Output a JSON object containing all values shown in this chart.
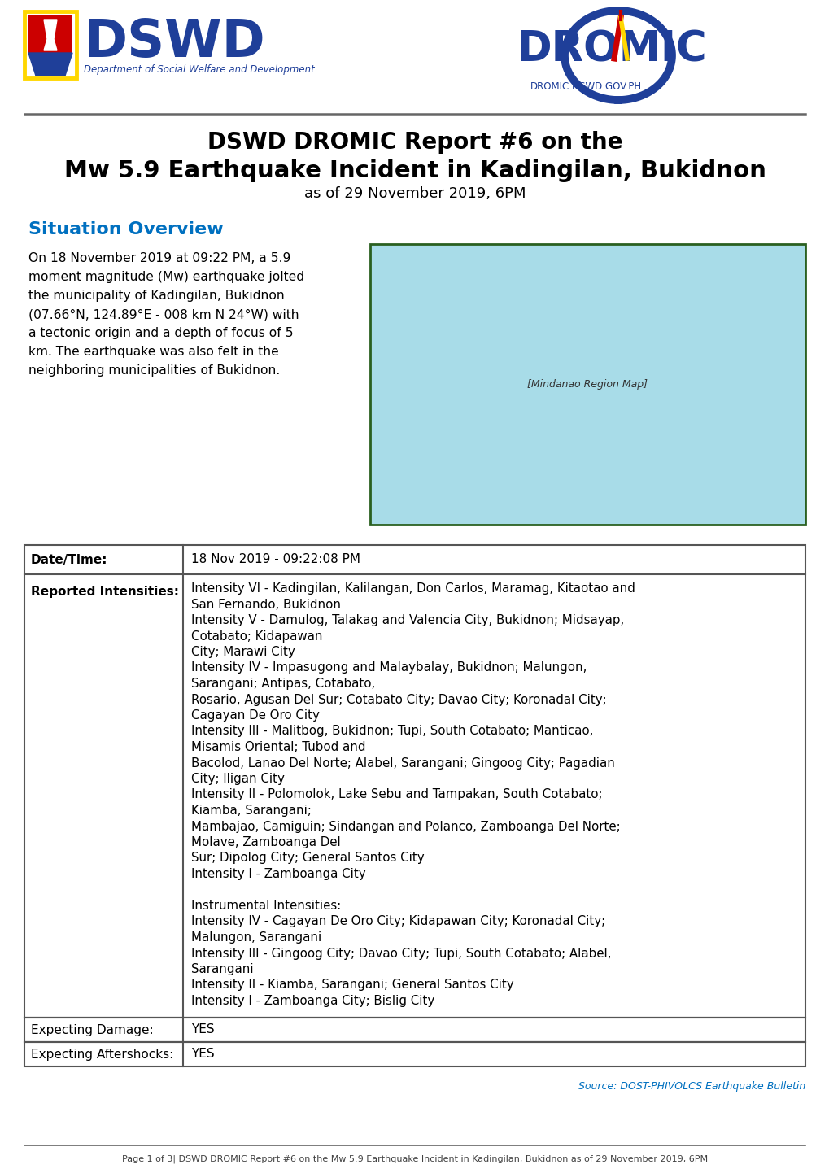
{
  "title_line1": "DSWD DROMIC Report #6 on the",
  "title_line2": "Mw 5.9 Earthquake Incident in Kadingilan, Bukidnon",
  "title_line3": "as of 29 November 2019, 6PM",
  "section_title": "Situation Overview",
  "situation_lines": [
    "On 18 November 2019 at 09:22 PM, a 5.9",
    "moment magnitude (Mw) earthquake jolted",
    "the municipality of Kadingilan, Bukidnon",
    "(07.66°N, 124.89°E - 008 km N 24°W) with",
    "a tectonic origin and a depth of focus of 5",
    "km. The earthquake was also felt in the",
    "neighboring municipalities of Bukidnon."
  ],
  "dt_label": "Date/Time:",
  "dt_value": "18 Nov 2019 - 09:22:08 PM",
  "ri_label": "Reported Intensities:",
  "ri_lines": [
    "Intensity VI - Kadingilan, Kalilangan, Don Carlos, Maramag, Kitaotao and",
    "San Fernando, Bukidnon",
    "Intensity V - Damulog, Talakag and Valencia City, Bukidnon; Midsayap,",
    "Cotabato; Kidapawan",
    "City; Marawi City",
    "Intensity IV - Impasugong and Malaybalay, Bukidnon; Malungon,",
    "Sarangani; Antipas, Cotabato,",
    "Rosario, Agusan Del Sur; Cotabato City; Davao City; Koronadal City;",
    "Cagayan De Oro City",
    "Intensity III - Malitbog, Bukidnon; Tupi, South Cotabato; Manticao,",
    "Misamis Oriental; Tubod and",
    "Bacolod, Lanao Del Norte; Alabel, Sarangani; Gingoog City; Pagadian",
    "City; Iligan City",
    "Intensity II - Polomolok, Lake Sebu and Tampakan, South Cotabato;",
    "Kiamba, Sarangani;",
    "Mambajao, Camiguin; Sindangan and Polanco, Zamboanga Del Norte;",
    "Molave, Zamboanga Del",
    "Sur; Dipolog City; General Santos City",
    "Intensity I - Zamboanga City",
    "",
    "Instrumental Intensities:",
    "Intensity IV - Cagayan De Oro City; Kidapawan City; Koronadal City;",
    "Malungon, Sarangani",
    "Intensity III - Gingoog City; Davao City; Tupi, South Cotabato; Alabel,",
    "Sarangani",
    "Intensity II - Kiamba, Sarangani; General Santos City",
    "Intensity I - Zamboanga City; Bislig City"
  ],
  "ed_label": "Expecting Damage:",
  "ed_value": "YES",
  "ea_label": "Expecting Aftershocks:",
  "ea_value": "YES",
  "source_text": "Source: DOST-PHIVOLCS Earthquake Bulletin",
  "footer_text": "Page 1 of 3| DSWD DROMIC Report #6 on the Mw 5.9 Earthquake Incident in Kadingilan, Bukidnon as of 29 November 2019, 6PM",
  "blue_color": "#1F3F99",
  "cyan_color": "#0070C0",
  "table_border": "#555555",
  "bg_color": "#FFFFFF",
  "map_bg": "#A8DCE8",
  "map_border": "#2a6020"
}
